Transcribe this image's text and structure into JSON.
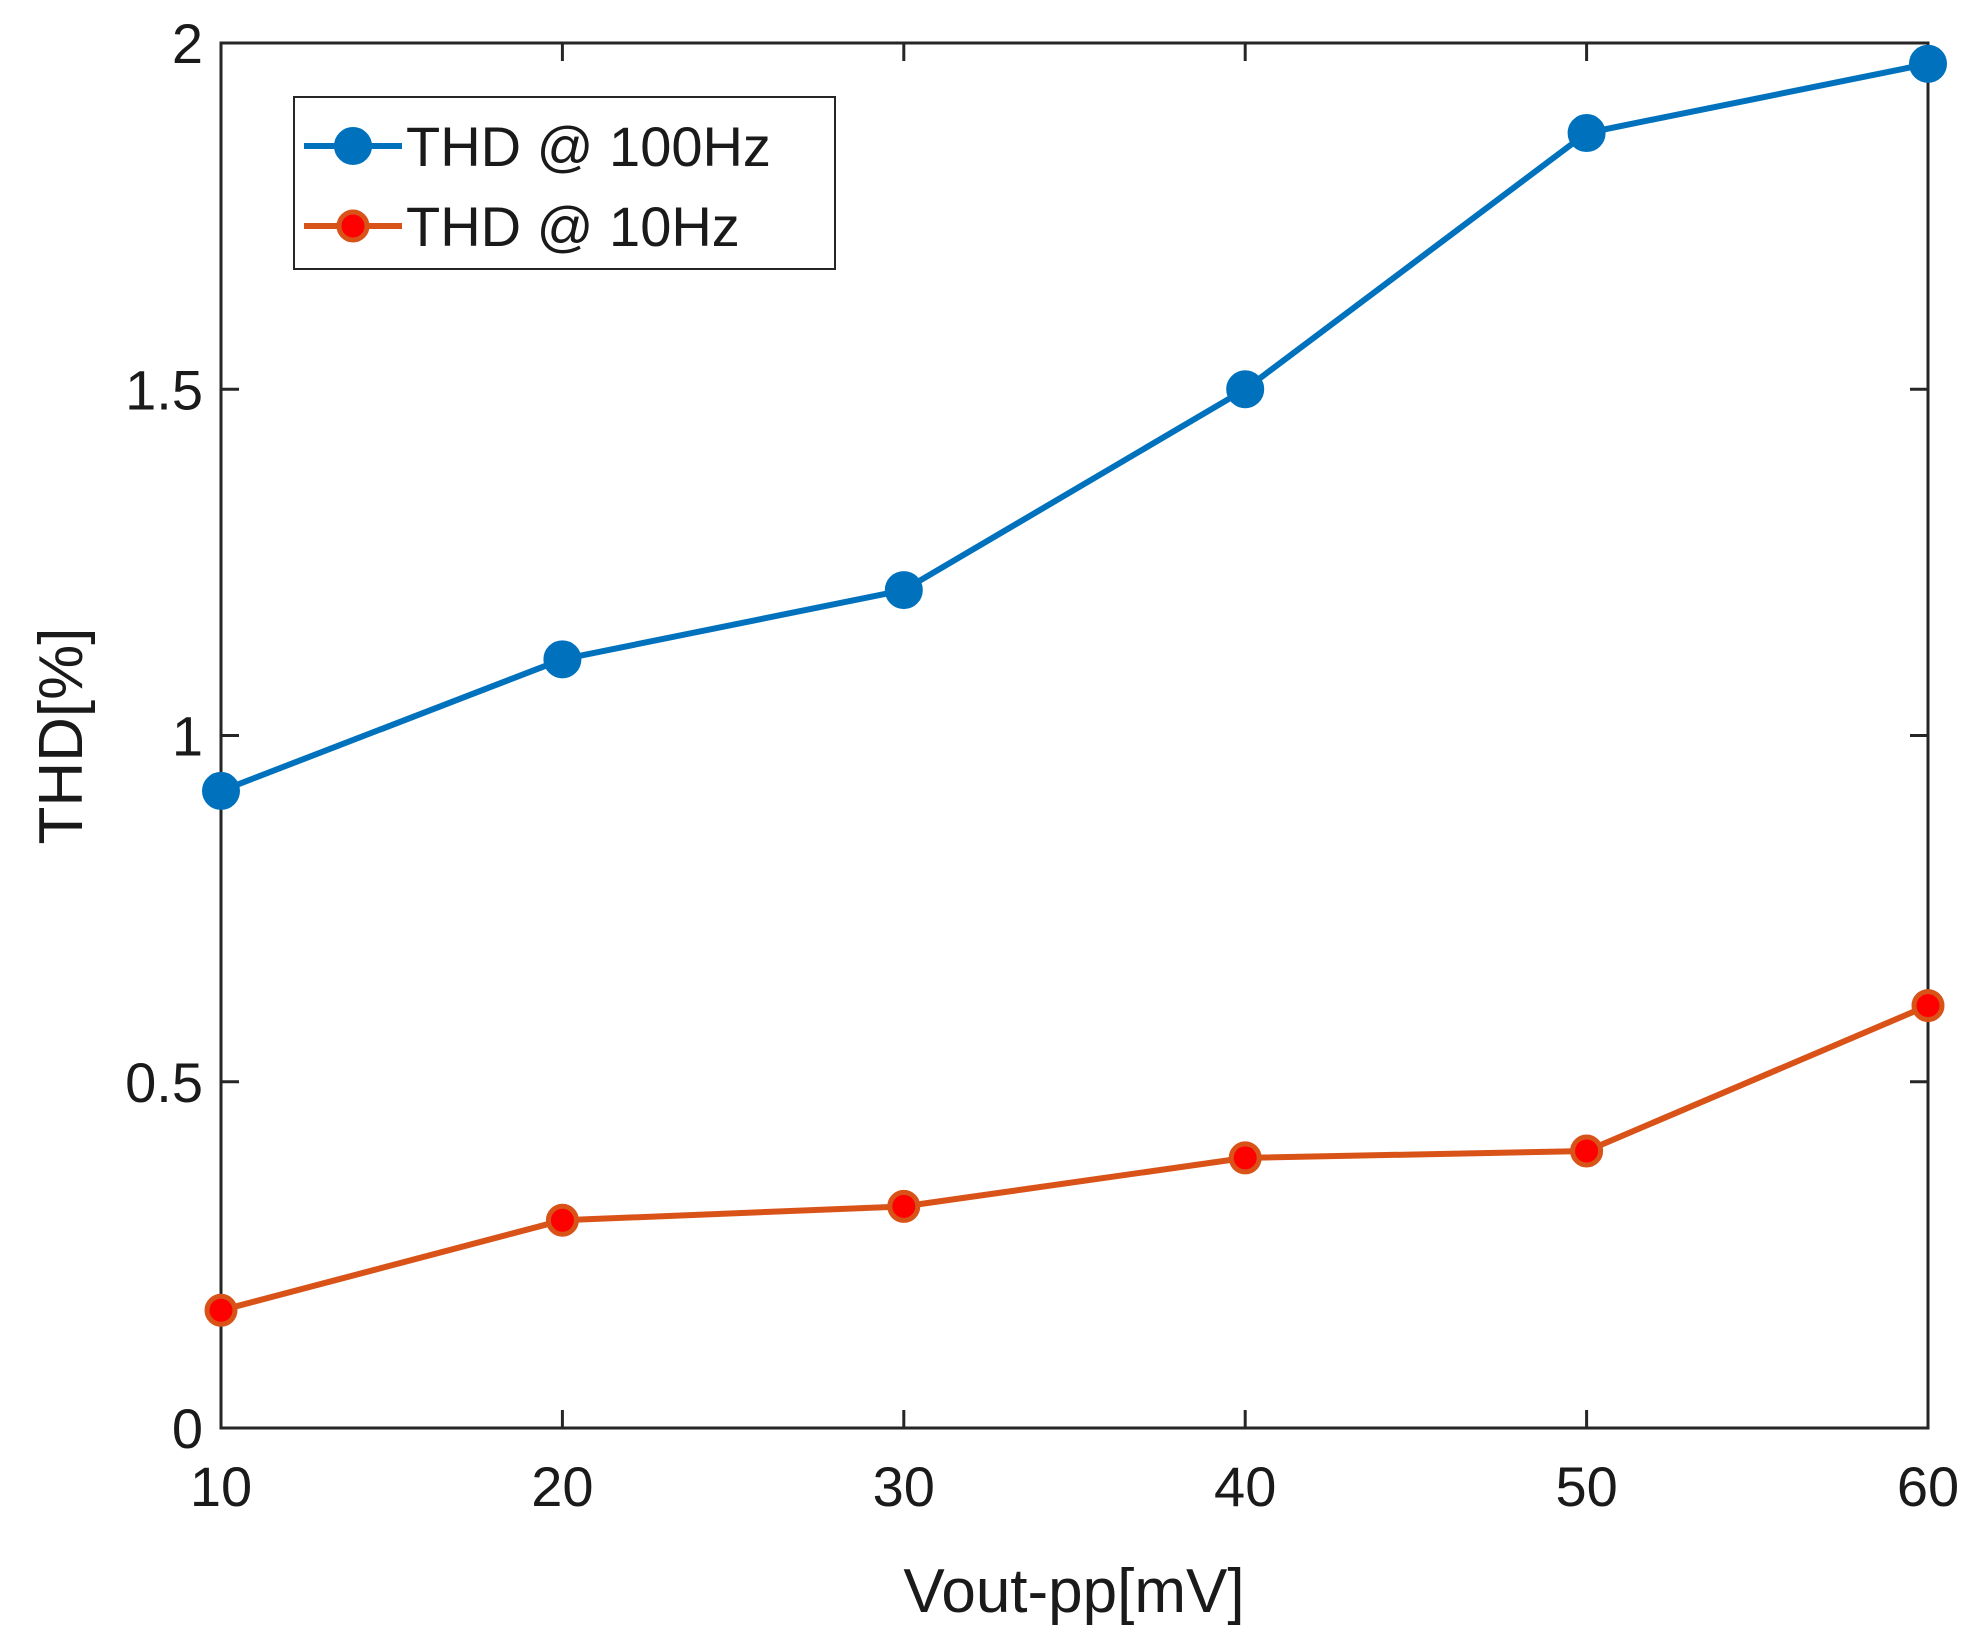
{
  "chart_data": {
    "type": "line",
    "title": "",
    "xlabel": "Vout-pp[mV]",
    "ylabel": "THD[%]",
    "xlim": [
      10,
      60
    ],
    "ylim": [
      0,
      2
    ],
    "x_ticks": [
      10,
      20,
      30,
      40,
      50,
      60
    ],
    "y_ticks": [
      0,
      0.5,
      1,
      1.5,
      2
    ],
    "x_tick_labels": [
      "10",
      "20",
      "30",
      "40",
      "50",
      "60"
    ],
    "y_tick_labels": [
      "0",
      "0.5",
      "1",
      "1.5",
      "2"
    ],
    "x": [
      10,
      20,
      30,
      40,
      50,
      60
    ],
    "series": [
      {
        "name": "THD @ 100Hz",
        "values": [
          0.92,
          1.11,
          1.21,
          1.5,
          1.87,
          1.97
        ],
        "color": "#0072bd",
        "marker_fill": "#0072bd"
      },
      {
        "name": "THD @ 10Hz",
        "values": [
          0.17,
          0.3,
          0.32,
          0.39,
          0.4,
          0.61
        ],
        "color": "#d95319",
        "marker_fill": "#ff0000"
      }
    ],
    "grid": false,
    "legend_position": "top-left"
  }
}
